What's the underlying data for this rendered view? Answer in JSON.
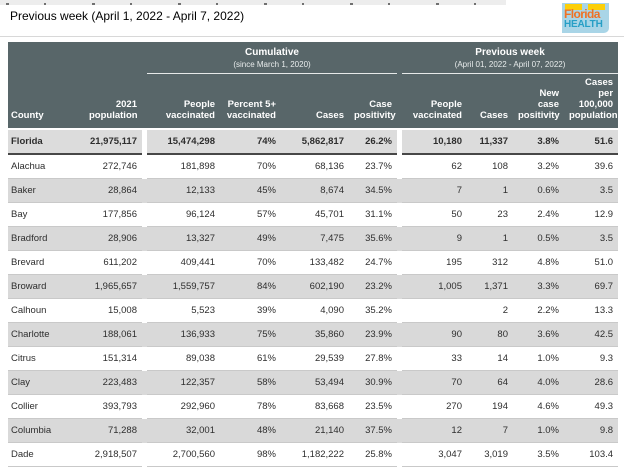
{
  "page": {
    "title": "Previous week (April 1, 2022 - April 7, 2022)"
  },
  "logo": {
    "line1": "Florida",
    "line2": "HEALTH",
    "colors": {
      "background": "#a9d5e7",
      "florida_text": "#ef7125",
      "health_text": "#279fc6",
      "tabs": "#fccf08"
    }
  },
  "theme": {
    "header_background": "#586669",
    "header_text": "#ffffff",
    "stripe_row": "#d9d9d9",
    "state_row": "#dcdcdc",
    "row_border": "#c9c9c9"
  },
  "table": {
    "groups": [
      {
        "label": "Cumulative",
        "sub": "(since March 1, 2020)"
      },
      {
        "label": "Previous week",
        "sub": "(April 01, 2022 - April 07, 2022)"
      }
    ],
    "columns": [
      "County",
      "2021 population",
      "People vaccinated",
      "Percent 5+ vaccinated",
      "Cases",
      "Case positivity",
      "People vaccinated",
      "Cases",
      "New case positivity",
      "Cases per 100,000 population"
    ],
    "column_keys": [
      "county",
      "population",
      "people_vaccinated",
      "percent_5plus_vaccinated",
      "cases",
      "case_positivity",
      "pw_people_vaccinated",
      "pw_cases",
      "pw_new_case_positivity",
      "pw_cases_per_100k"
    ],
    "state_row": {
      "county": "Florida",
      "population": "21,975,117",
      "people_vaccinated": "15,474,298",
      "percent_5plus_vaccinated": "74%",
      "cases": "5,862,817",
      "case_positivity": "26.2%",
      "pw_people_vaccinated": "10,180",
      "pw_cases": "11,337",
      "pw_new_case_positivity": "3.8%",
      "pw_cases_per_100k": "51.6"
    },
    "rows": [
      {
        "county": "Alachua",
        "population": "272,746",
        "people_vaccinated": "181,898",
        "percent_5plus_vaccinated": "70%",
        "cases": "68,136",
        "case_positivity": "23.7%",
        "pw_people_vaccinated": "62",
        "pw_cases": "108",
        "pw_new_case_positivity": "3.2%",
        "pw_cases_per_100k": "39.6"
      },
      {
        "county": "Baker",
        "population": "28,864",
        "people_vaccinated": "12,133",
        "percent_5plus_vaccinated": "45%",
        "cases": "8,674",
        "case_positivity": "34.5%",
        "pw_people_vaccinated": "7",
        "pw_cases": "1",
        "pw_new_case_positivity": "0.6%",
        "pw_cases_per_100k": "3.5"
      },
      {
        "county": "Bay",
        "population": "177,856",
        "people_vaccinated": "96,124",
        "percent_5plus_vaccinated": "57%",
        "cases": "45,701",
        "case_positivity": "31.1%",
        "pw_people_vaccinated": "50",
        "pw_cases": "23",
        "pw_new_case_positivity": "2.4%",
        "pw_cases_per_100k": "12.9"
      },
      {
        "county": "Bradford",
        "population": "28,906",
        "people_vaccinated": "13,327",
        "percent_5plus_vaccinated": "49%",
        "cases": "7,475",
        "case_positivity": "35.6%",
        "pw_people_vaccinated": "9",
        "pw_cases": "1",
        "pw_new_case_positivity": "0.5%",
        "pw_cases_per_100k": "3.5"
      },
      {
        "county": "Brevard",
        "population": "611,202",
        "people_vaccinated": "409,441",
        "percent_5plus_vaccinated": "70%",
        "cases": "133,482",
        "case_positivity": "24.7%",
        "pw_people_vaccinated": "195",
        "pw_cases": "312",
        "pw_new_case_positivity": "4.8%",
        "pw_cases_per_100k": "51.0"
      },
      {
        "county": "Broward",
        "population": "1,965,657",
        "people_vaccinated": "1,559,757",
        "percent_5plus_vaccinated": "84%",
        "cases": "602,190",
        "case_positivity": "23.2%",
        "pw_people_vaccinated": "1,005",
        "pw_cases": "1,371",
        "pw_new_case_positivity": "3.3%",
        "pw_cases_per_100k": "69.7"
      },
      {
        "county": "Calhoun",
        "population": "15,008",
        "people_vaccinated": "5,523",
        "percent_5plus_vaccinated": "39%",
        "cases": "4,090",
        "case_positivity": "35.2%",
        "pw_people_vaccinated": "",
        "pw_cases": "2",
        "pw_new_case_positivity": "2.2%",
        "pw_cases_per_100k": "13.3"
      },
      {
        "county": "Charlotte",
        "population": "188,061",
        "people_vaccinated": "136,933",
        "percent_5plus_vaccinated": "75%",
        "cases": "35,860",
        "case_positivity": "23.9%",
        "pw_people_vaccinated": "90",
        "pw_cases": "80",
        "pw_new_case_positivity": "3.6%",
        "pw_cases_per_100k": "42.5"
      },
      {
        "county": "Citrus",
        "population": "151,314",
        "people_vaccinated": "89,038",
        "percent_5plus_vaccinated": "61%",
        "cases": "29,539",
        "case_positivity": "27.8%",
        "pw_people_vaccinated": "33",
        "pw_cases": "14",
        "pw_new_case_positivity": "1.0%",
        "pw_cases_per_100k": "9.3"
      },
      {
        "county": "Clay",
        "population": "223,483",
        "people_vaccinated": "122,357",
        "percent_5plus_vaccinated": "58%",
        "cases": "53,494",
        "case_positivity": "30.9%",
        "pw_people_vaccinated": "70",
        "pw_cases": "64",
        "pw_new_case_positivity": "4.0%",
        "pw_cases_per_100k": "28.6"
      },
      {
        "county": "Collier",
        "population": "393,793",
        "people_vaccinated": "292,960",
        "percent_5plus_vaccinated": "78%",
        "cases": "83,668",
        "case_positivity": "23.5%",
        "pw_people_vaccinated": "270",
        "pw_cases": "194",
        "pw_new_case_positivity": "4.6%",
        "pw_cases_per_100k": "49.3"
      },
      {
        "county": "Columbia",
        "population": "71,288",
        "people_vaccinated": "32,001",
        "percent_5plus_vaccinated": "48%",
        "cases": "21,140",
        "case_positivity": "37.5%",
        "pw_people_vaccinated": "12",
        "pw_cases": "7",
        "pw_new_case_positivity": "1.0%",
        "pw_cases_per_100k": "9.8"
      },
      {
        "county": "Dade",
        "population": "2,918,507",
        "people_vaccinated": "2,700,560",
        "percent_5plus_vaccinated": "98%",
        "cases": "1,182,222",
        "case_positivity": "25.8%",
        "pw_people_vaccinated": "3,047",
        "pw_cases": "3,019",
        "pw_new_case_positivity": "3.5%",
        "pw_cases_per_100k": "103.4"
      }
    ]
  }
}
